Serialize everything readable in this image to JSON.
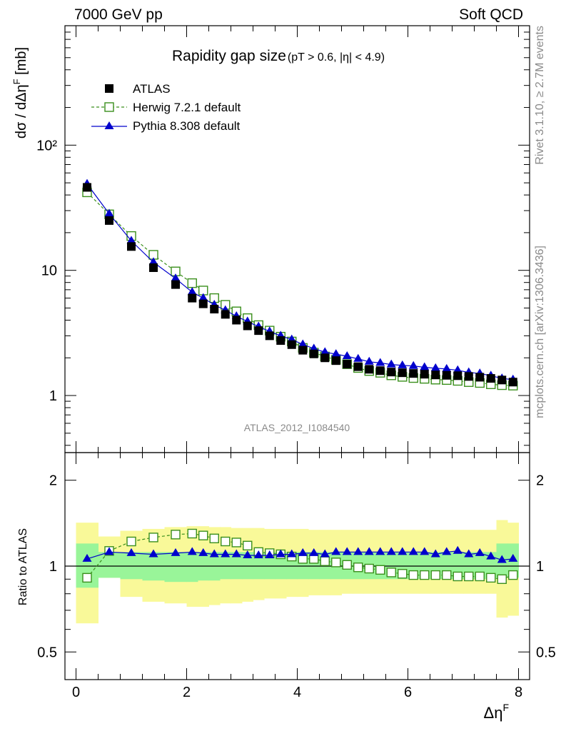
{
  "header": {
    "left": "7000 GeV pp",
    "right": "Soft QCD"
  },
  "side_labels": {
    "rivet": "Rivet 3.1.10, ≥ 2.7M events",
    "mcplots": "mcplots.cern.ch [arXiv:1306.3436]"
  },
  "analysis_id": "ATLAS_2012_I1084540",
  "main_title": "Rapidity gap size",
  "main_title_cuts": "(pT > 0.6, |η| < 4.9)",
  "colors": {
    "atlas": "#000000",
    "herwig": "#3a8f1c",
    "pythia": "#0000cc",
    "band_inner": "#99f599",
    "band_outer": "#f9f999"
  },
  "chart_data": [
    {
      "type": "scatter",
      "panel": "main",
      "ylabel": "dσ / dΔη^F [mb]",
      "yscale": "log",
      "ylim": [
        0.35,
        900
      ],
      "xlim": [
        -0.2,
        8.2
      ],
      "y_ticks": [
        {
          "value": 1,
          "label": "1"
        },
        {
          "value": 10,
          "label": "10"
        },
        {
          "value": 100,
          "label": "10²"
        }
      ],
      "legend_position": "top-left",
      "series": [
        {
          "name": "ATLAS",
          "marker": "square-filled",
          "x": [
            0.2,
            0.6,
            1.0,
            1.4,
            1.8,
            2.1,
            2.3,
            2.5,
            2.7,
            2.9,
            3.1,
            3.3,
            3.5,
            3.7,
            3.9,
            4.1,
            4.3,
            4.5,
            4.7,
            4.9,
            5.1,
            5.3,
            5.5,
            5.7,
            5.9,
            6.1,
            6.3,
            6.5,
            6.7,
            6.9,
            7.1,
            7.3,
            7.5,
            7.7,
            7.9
          ],
          "y": [
            46,
            25,
            15.5,
            10.5,
            7.7,
            6.0,
            5.4,
            4.9,
            4.45,
            4.0,
            3.6,
            3.3,
            3.0,
            2.75,
            2.55,
            2.3,
            2.15,
            2.0,
            1.9,
            1.78,
            1.7,
            1.62,
            1.58,
            1.54,
            1.52,
            1.5,
            1.48,
            1.46,
            1.45,
            1.44,
            1.42,
            1.4,
            1.37,
            1.33,
            1.28
          ]
        },
        {
          "name": "Herwig 7.2.1 default",
          "marker": "square-open",
          "line": "dashed",
          "x": [
            0.2,
            0.6,
            1.0,
            1.4,
            1.8,
            2.1,
            2.3,
            2.5,
            2.7,
            2.9,
            3.1,
            3.3,
            3.5,
            3.7,
            3.9,
            4.1,
            4.3,
            4.5,
            4.7,
            4.9,
            5.1,
            5.3,
            5.5,
            5.7,
            5.9,
            6.1,
            6.3,
            6.5,
            6.7,
            6.9,
            7.1,
            7.3,
            7.5,
            7.7,
            7.9
          ],
          "y": [
            42,
            28,
            18.8,
            13.3,
            9.8,
            7.9,
            6.9,
            6.0,
            5.3,
            4.7,
            4.15,
            3.65,
            3.3,
            2.95,
            2.7,
            2.4,
            2.2,
            2.05,
            1.93,
            1.78,
            1.66,
            1.57,
            1.52,
            1.45,
            1.41,
            1.38,
            1.36,
            1.34,
            1.33,
            1.31,
            1.28,
            1.26,
            1.23,
            1.21,
            1.2
          ]
        },
        {
          "name": "Pythia 8.308 default",
          "marker": "triangle-filled",
          "line": "solid",
          "x": [
            0.2,
            0.6,
            1.0,
            1.4,
            1.8,
            2.1,
            2.3,
            2.5,
            2.7,
            2.9,
            3.1,
            3.3,
            3.5,
            3.7,
            3.9,
            4.1,
            4.3,
            4.5,
            4.7,
            4.9,
            5.1,
            5.3,
            5.5,
            5.7,
            5.9,
            6.1,
            6.3,
            6.5,
            6.7,
            6.9,
            7.1,
            7.3,
            7.5,
            7.7,
            7.9
          ],
          "y": [
            49,
            28.3,
            17.2,
            11.6,
            8.6,
            6.7,
            6.0,
            5.3,
            4.8,
            4.3,
            3.9,
            3.55,
            3.25,
            3.0,
            2.8,
            2.56,
            2.37,
            2.22,
            2.14,
            2.06,
            1.96,
            1.86,
            1.82,
            1.77,
            1.74,
            1.72,
            1.68,
            1.65,
            1.63,
            1.59,
            1.53,
            1.5,
            1.44,
            1.37,
            1.34
          ]
        }
      ]
    },
    {
      "type": "scatter",
      "panel": "ratio",
      "ylabel": "Ratio to ATLAS",
      "xlabel": "Δη^F",
      "yscale": "log",
      "ylim": [
        0.4,
        2.5
      ],
      "xlim": [
        -0.2,
        8.2
      ],
      "x_ticks": [
        {
          "value": 0,
          "label": "0"
        },
        {
          "value": 2,
          "label": "2"
        },
        {
          "value": 4,
          "label": "4"
        },
        {
          "value": 6,
          "label": "6"
        },
        {
          "value": 8,
          "label": "8"
        }
      ],
      "y_ticks": [
        {
          "value": 0.5,
          "label": "0.5"
        },
        {
          "value": 1,
          "label": "1"
        },
        {
          "value": 2,
          "label": "2"
        }
      ],
      "bands": {
        "bin_edges": [
          0,
          0.4,
          0.8,
          1.2,
          1.6,
          2.0,
          2.2,
          2.4,
          2.6,
          2.8,
          3.0,
          3.2,
          3.4,
          3.6,
          3.8,
          4.0,
          4.2,
          4.4,
          4.6,
          4.8,
          5.0,
          5.2,
          5.4,
          5.6,
          5.8,
          6.0,
          6.2,
          6.4,
          6.6,
          6.8,
          7.0,
          7.2,
          7.4,
          7.6,
          7.8,
          8.0
        ],
        "inner_low": [
          0.84,
          0.91,
          0.9,
          0.89,
          0.88,
          0.88,
          0.89,
          0.89,
          0.9,
          0.9,
          0.9,
          0.9,
          0.9,
          0.9,
          0.9,
          0.9,
          0.9,
          0.9,
          0.9,
          0.9,
          0.9,
          0.9,
          0.9,
          0.9,
          0.9,
          0.9,
          0.9,
          0.9,
          0.9,
          0.9,
          0.9,
          0.9,
          0.9,
          0.91,
          0.91
        ],
        "inner_high": [
          1.2,
          1.12,
          1.12,
          1.12,
          1.12,
          1.12,
          1.12,
          1.12,
          1.12,
          1.12,
          1.12,
          1.12,
          1.12,
          1.12,
          1.12,
          1.12,
          1.12,
          1.12,
          1.12,
          1.12,
          1.12,
          1.12,
          1.12,
          1.12,
          1.12,
          1.12,
          1.12,
          1.12,
          1.12,
          1.12,
          1.12,
          1.12,
          1.12,
          1.2,
          1.2
        ],
        "outer_low": [
          0.63,
          0.91,
          0.78,
          0.75,
          0.74,
          0.72,
          0.72,
          0.73,
          0.74,
          0.74,
          0.75,
          0.76,
          0.77,
          0.77,
          0.78,
          0.78,
          0.79,
          0.79,
          0.79,
          0.8,
          0.8,
          0.8,
          0.8,
          0.8,
          0.8,
          0.8,
          0.8,
          0.8,
          0.8,
          0.8,
          0.8,
          0.8,
          0.8,
          0.66,
          0.67
        ],
        "outer_high": [
          1.42,
          1.27,
          1.33,
          1.35,
          1.37,
          1.38,
          1.38,
          1.37,
          1.37,
          1.36,
          1.36,
          1.36,
          1.35,
          1.35,
          1.35,
          1.35,
          1.34,
          1.34,
          1.34,
          1.34,
          1.34,
          1.34,
          1.34,
          1.34,
          1.34,
          1.34,
          1.34,
          1.34,
          1.34,
          1.34,
          1.34,
          1.34,
          1.34,
          1.45,
          1.42
        ]
      },
      "series": [
        {
          "name": "Herwig 7.2.1 default",
          "marker": "square-open",
          "line": "dashed",
          "x": [
            0.2,
            0.6,
            1.0,
            1.4,
            1.8,
            2.1,
            2.3,
            2.5,
            2.7,
            2.9,
            3.1,
            3.3,
            3.5,
            3.7,
            3.9,
            4.1,
            4.3,
            4.5,
            4.7,
            4.9,
            5.1,
            5.3,
            5.5,
            5.7,
            5.9,
            6.1,
            6.3,
            6.5,
            6.7,
            6.9,
            7.1,
            7.3,
            7.5,
            7.7,
            7.9
          ],
          "y": [
            0.91,
            1.13,
            1.22,
            1.26,
            1.29,
            1.3,
            1.28,
            1.25,
            1.22,
            1.21,
            1.18,
            1.12,
            1.11,
            1.1,
            1.08,
            1.06,
            1.06,
            1.04,
            1.03,
            1.01,
            0.99,
            0.98,
            0.97,
            0.95,
            0.94,
            0.93,
            0.93,
            0.93,
            0.93,
            0.92,
            0.92,
            0.92,
            0.91,
            0.9,
            0.93
          ]
        },
        {
          "name": "Pythia 8.308 default",
          "marker": "triangle-filled",
          "line": "solid",
          "x": [
            0.2,
            0.6,
            1.0,
            1.4,
            1.8,
            2.1,
            2.3,
            2.5,
            2.7,
            2.9,
            3.1,
            3.3,
            3.5,
            3.7,
            3.9,
            4.1,
            4.3,
            4.5,
            4.7,
            4.9,
            5.1,
            5.3,
            5.5,
            5.7,
            5.9,
            6.1,
            6.3,
            6.5,
            6.7,
            6.9,
            7.1,
            7.3,
            7.5,
            7.7,
            7.9
          ],
          "y": [
            1.06,
            1.12,
            1.11,
            1.1,
            1.11,
            1.12,
            1.11,
            1.1,
            1.1,
            1.1,
            1.09,
            1.09,
            1.09,
            1.1,
            1.1,
            1.11,
            1.11,
            1.1,
            1.12,
            1.12,
            1.12,
            1.12,
            1.12,
            1.12,
            1.12,
            1.12,
            1.12,
            1.1,
            1.12,
            1.13,
            1.1,
            1.11,
            1.08,
            1.05,
            1.06
          ]
        }
      ]
    }
  ]
}
